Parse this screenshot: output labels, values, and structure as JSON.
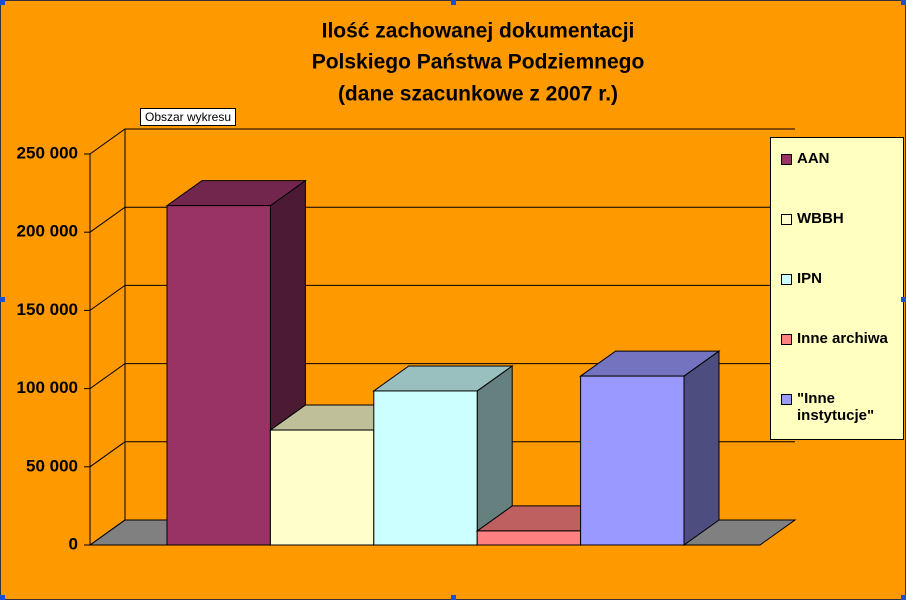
{
  "chart_data": {
    "type": "bar3d",
    "title": [
      "Ilość zachowanej dokumentacji",
      "Polskiego Państwa Podziemnego",
      "(dane szacunkowe z 2007 r.)"
    ],
    "tooltip": "Obszar wykresu",
    "series": [
      {
        "name": "AAN",
        "color": "#993366",
        "values": [
          217000
        ]
      },
      {
        "name": "WBBH",
        "color": "#FFFFCC",
        "values": [
          73500
        ]
      },
      {
        "name": "IPN",
        "color": "#CCFFFF",
        "values": [
          98500
        ]
      },
      {
        "name": "Inne archiwa",
        "color": "#FF8080",
        "values": [
          9000
        ]
      },
      {
        "name": "\"Inne instytucje\"",
        "color": "#9999FF",
        "values": [
          108000
        ]
      }
    ],
    "ylim": [
      0,
      250000
    ],
    "yticks": [
      0,
      {
        "value": 50000,
        "label": "50 000"
      },
      {
        "value": 100000,
        "label": "100 000"
      },
      {
        "value": 150000,
        "label": "150 000"
      },
      {
        "value": 200000,
        "label": "200 000"
      },
      {
        "value": 250000,
        "label": "250 000"
      }
    ],
    "grid": true
  }
}
